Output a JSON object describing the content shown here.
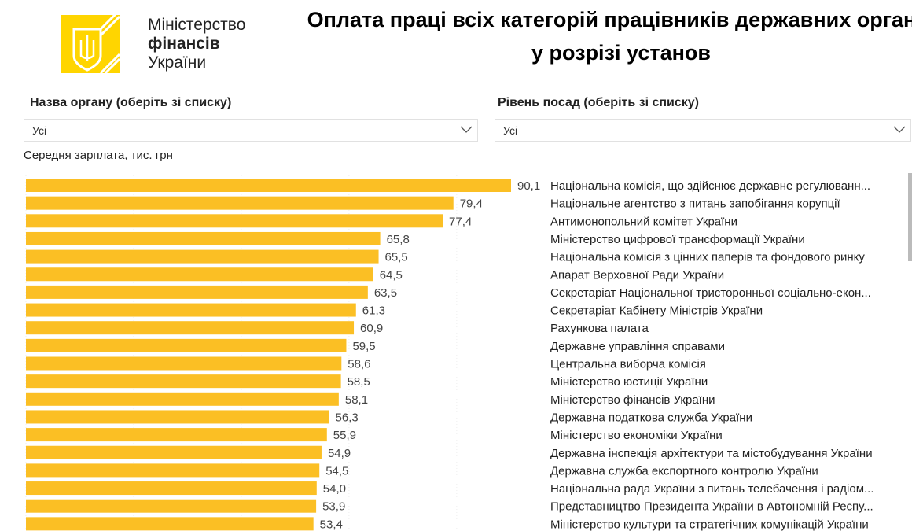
{
  "logo": {
    "line1": "Міністерство",
    "line2": "фінансів",
    "line3": "України"
  },
  "title": "Оплата праці всіх категорій працівників державних органів у розрізі установ",
  "filters": [
    {
      "label": "Назва органу (оберіть зі списку)",
      "value": "Усі"
    },
    {
      "label": "Рівень посад (оберіть зі списку)",
      "value": "Усі"
    }
  ],
  "colors": {
    "bar": "#fbbf24"
  },
  "chart_data": {
    "type": "bar",
    "orientation": "horizontal",
    "title": "Середня зарплата, тис. грн",
    "xlim": [
      0,
      100
    ],
    "grid": true,
    "categories": [
      "Національна комісія, що здійснює державне регулюванн...",
      "Національне агентство з питань запобігання корупції",
      "Антимонопольний комітет України",
      "Міністерство цифрової трансформації України",
      "Національна комісія з цінних паперів та фондового ринку",
      "Апарат Верховної Ради України",
      "Секретаріат Національної тристоронньої соціально-екон...",
      "Секретаріат Кабінету Міністрів України",
      "Рахункова палата",
      "Державне управління справами",
      "Центральна виборча комісія",
      "Міністерство юстиції України",
      "Міністерство фінансів України",
      "Державна податкова служба України",
      "Міністерство економіки України",
      "Державна інспекція архітектури та містобудування України",
      "Державна служба експортного контролю України",
      "Національна рада України з питань телебачення і радіом...",
      "Представництво Президента України в Автономній Респу...",
      "Міністерство культури та стратегічних комунікацій України"
    ],
    "values": [
      90.1,
      79.4,
      77.4,
      65.8,
      65.5,
      64.5,
      63.5,
      61.3,
      60.9,
      59.5,
      58.6,
      58.5,
      58.1,
      56.3,
      55.9,
      54.9,
      54.5,
      54.0,
      53.9,
      53.4
    ],
    "value_labels": [
      "90,1",
      "79,4",
      "77,4",
      "65,8",
      "65,5",
      "64,5",
      "63,5",
      "61,3",
      "60,9",
      "59,5",
      "58,6",
      "58,5",
      "58,1",
      "56,3",
      "55,9",
      "54,9",
      "54,5",
      "54,0",
      "53,9",
      "53,4"
    ]
  }
}
